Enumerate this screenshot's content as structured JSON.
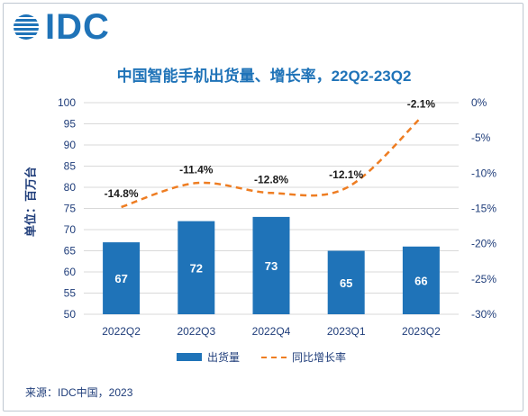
{
  "logo": {
    "text": "IDC",
    "icon": "globe-stripes-icon"
  },
  "chart_data": {
    "type": "bar",
    "title": "中国智能手机出货量、增长率，22Q2-23Q2",
    "ylabel": "单位：百万台",
    "categories": [
      "2022Q2",
      "2022Q3",
      "2022Q4",
      "2023Q1",
      "2023Q2"
    ],
    "series": [
      {
        "name": "出货量",
        "type": "bar",
        "axis": "left",
        "values": [
          67,
          72,
          73,
          65,
          66
        ],
        "labels": [
          "67",
          "72",
          "73",
          "65",
          "66"
        ],
        "color": "#1f73b8"
      },
      {
        "name": "同比增长率",
        "type": "line",
        "axis": "right",
        "values": [
          -14.8,
          -11.4,
          -12.8,
          -12.1,
          -2.1
        ],
        "labels": [
          "-14.8%",
          "-11.4%",
          "-12.8%",
          "-12.1%",
          "-2.1%"
        ],
        "color": "#ee7d22",
        "style": "dashed"
      }
    ],
    "ylim_left": [
      50,
      100
    ],
    "yticks_left": [
      "100",
      "95",
      "90",
      "85",
      "80",
      "75",
      "70",
      "65",
      "60",
      "55",
      "50"
    ],
    "ylim_right": [
      -30,
      0
    ],
    "yticks_right": [
      "0%",
      "-5%",
      "-10%",
      "-15%",
      "-20%",
      "-25%",
      "-30%"
    ],
    "grid": true,
    "legend": "bottom"
  },
  "source": "来源：IDC中国，2023"
}
